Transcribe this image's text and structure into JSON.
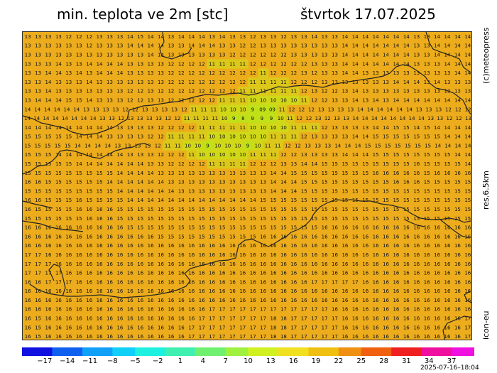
{
  "header": {
    "title": "min. teplota ve 2m [stc]",
    "date": "štvrtok 17.07.2025"
  },
  "side": {
    "credit": "(c)meteopress",
    "resolution": "res.6.5km",
    "model": "icon-eu"
  },
  "colorbar": {
    "stops": [
      "#1010e0",
      "#1060f0",
      "#10a0f8",
      "#10d0f8",
      "#20f0e0",
      "#40f0b0",
      "#70f070",
      "#a0f040",
      "#d0f020",
      "#f0e020",
      "#f0c010",
      "#f09010",
      "#f06010",
      "#f02020",
      "#f010a0",
      "#f010e0"
    ],
    "ticks": [
      "-17",
      "-14",
      "-11",
      "-8",
      "-5",
      "-2",
      "1",
      "4",
      "7",
      "10",
      "13",
      "16",
      "19",
      "22",
      "25",
      "28",
      "31",
      "34",
      "37"
    ],
    "range": [
      -20,
      40
    ]
  },
  "timestamp": "2025-07-16–18:04",
  "map": {
    "background": "#ecac1c",
    "cool_color": "#c8d818",
    "grid": [
      "1313131312121213131314151414131414141314131312131312131314131314141414141414131314141414",
      "1313131313131213131314141414131314141413131212131313131313131314141414141414131314141414",
      "1313131313131313131313131414131313131313121212121212131313131314141414141414131314141414",
      "1313131413131414141413131313121212121111111112121212121213131314141414141414131313141414",
      "1313141413141314141413131313121212121212121212111212121312131314141313131313131313131414",
      "1313141313131413131313131313121212121212121211111111121212131313131313131414141314131313",
      "1313141313131313131312121312121212121212121111111111111213121213141313131313131313131313",
      "1314141415151413131312121313121212121211111110101010101112121313141314131414141414141414",
      "1414141414141313131312121313131312111111101010909091112121213131313141414141414131313121212",
      "1414141414141414131312131313131212111111111098999101112121312131314141414141414141313121213",
      "1414141414141414141313131312121212111111111110101010111111121313131314141515141514141414",
      "1515151515141414131313131212111111111010101010101111111213131313141415151515151515141414",
      "1515151515141414141313131312111110109101010910111112121313131414141515151515151514141414",
      "1515151414141414141413131312121211101010101011111112121313131314141415151515151515151414",
      "1515151515141414141414141313121212121111111112121213131414151515151515151515161515151514",
      "1515151515151515151414141413131313131313131313131414151515151515151516161616161516161616",
      "1616151515151515141414141414131313131313131313131414141515151515151515151616161515151515",
      "1515151515151515151414141414141313131313131313131414141515151515151515151515151515151515",
      "1616151515161515151514141414141414141414141414151515151515151515151515151515151515151515",
      "1615151515161616161515151515151515151515151515151515151515151515151515151515151515151515",
      "1515151515151616161515151515151515151515151515151515151515151515151515151515151515151515",
      "1616161616161616161615151515151515151515151515151515151515161616161616161616161616161616",
      "1616161616161616161616161615151515151515151515161616161616161616161616161616161616161616",
      "1616161616161616161616161616161616161616161616161616161616161616161616161616161616161616",
      "1717161616161616161616161616161616161616161616161616161616161616161616161616161616161616",
      "1717171616161616161616161616161616161616161616161616161616161616161616161616161616161616",
      "1717171716161616161616161616161616161616161616161616161616161616161616161616161616161616",
      "1616171717161616161616161616161616161616161616161616161617171717171616161616161616161616",
      "1616161616161616161616161616161616161616161616161616161616161616161616161616161616161616",
      "1616161616161616161616161616161616161616161616161616161616161616161616161616161616161616",
      "1616161616161616161616161616161616161717171717171717171717171616161616161616161616161616",
      "1615161616161616161616161616161616171717171717171818171717171716161616161616161616161617",
      "1615161616161616161616161616161617171717171717171818171717171716161616161616161616161617",
      "1615161616161616161616161616161617171717171717171818171717171716161616161616161616161617"
    ]
  }
}
